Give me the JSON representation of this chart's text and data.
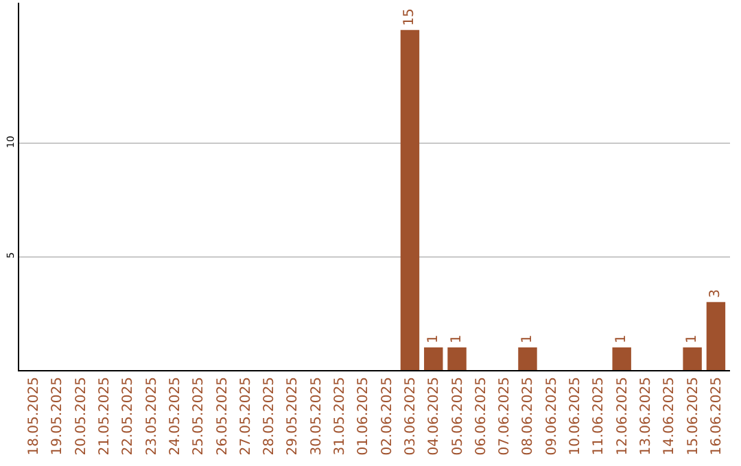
{
  "chart_data": {
    "type": "bar",
    "categories": [
      "18.05.2025",
      "19.05.2025",
      "20.05.2025",
      "21.05.2025",
      "22.05.2025",
      "23.05.2025",
      "24.05.2025",
      "25.05.2025",
      "26.05.2025",
      "27.05.2025",
      "28.05.2025",
      "29.05.2025",
      "30.05.2025",
      "31.05.2025",
      "01.06.2025",
      "02.06.2025",
      "03.06.2025",
      "04.06.2025",
      "05.06.2025",
      "06.06.2025",
      "07.06.2025",
      "08.06.2025",
      "09.06.2025",
      "10.06.2025",
      "11.06.2025",
      "12.06.2025",
      "13.06.2025",
      "14.06.2025",
      "15.06.2025",
      "16.06.2025"
    ],
    "values": [
      0,
      0,
      0,
      0,
      0,
      0,
      0,
      0,
      0,
      0,
      0,
      0,
      0,
      0,
      0,
      0,
      15,
      1,
      1,
      0,
      0,
      1,
      0,
      0,
      0,
      1,
      0,
      0,
      1,
      3
    ],
    "value_labels": [
      null,
      null,
      null,
      null,
      null,
      null,
      null,
      null,
      null,
      null,
      null,
      null,
      null,
      null,
      null,
      null,
      "15",
      "1",
      "1",
      null,
      null,
      "1",
      null,
      null,
      null,
      "1",
      null,
      null,
      "1",
      "3"
    ],
    "color": "#a0522d",
    "ylim": [
      0,
      16.2
    ],
    "yticks": [
      5,
      10
    ],
    "grid": "y"
  }
}
